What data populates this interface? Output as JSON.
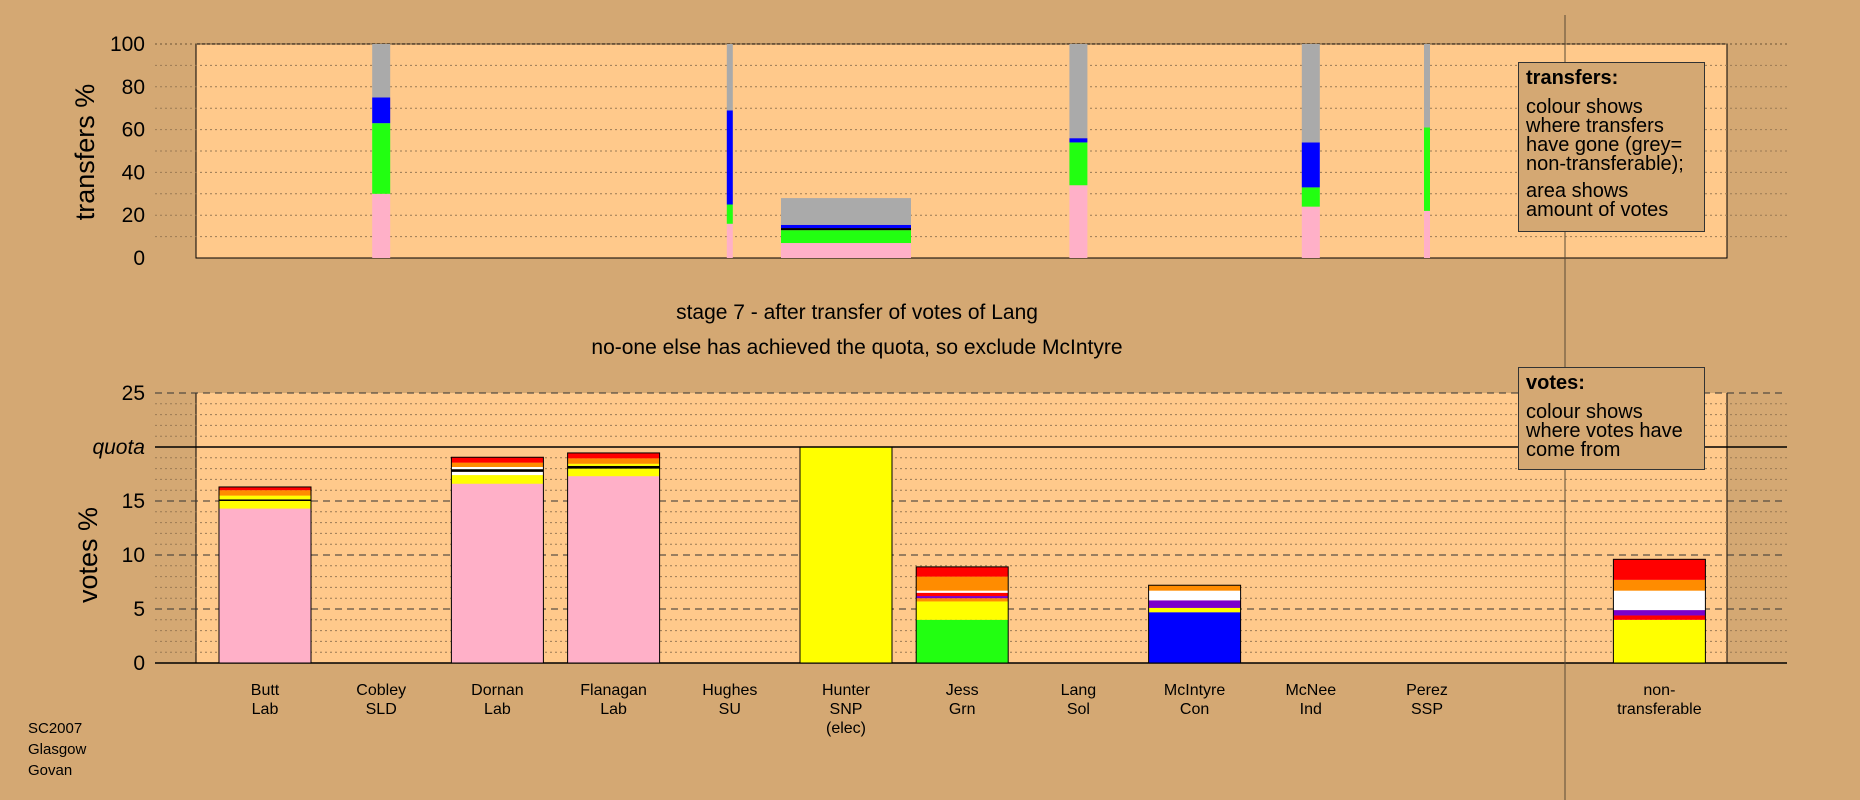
{
  "chart_data": {
    "type": "bar",
    "stage_title": "stage 7 - after transfer of votes of Lang",
    "stage_subtitle": "no-one else has achieved the quota, so exclude McIntyre",
    "colors": {
      "Lab": "#ffb0c8",
      "SNP": "#ffff00",
      "Grn": "#22ff11",
      "Con": "#0000ff",
      "SSP": "#ff0000",
      "Sol": "#ff8c00",
      "SLD": "#ff8c00",
      "SU": "#7b00cc",
      "Ind": "#ffffff",
      "nontransferable": "#aaaaaa",
      "black": "#000000"
    },
    "top_chart": {
      "ylabel": "transfers %",
      "yticks": [
        0,
        20,
        40,
        60,
        80,
        100
      ],
      "ylim": [
        0,
        100
      ],
      "bars": [
        {
          "col": 1,
          "width": "narrow",
          "segments": [
            [
              "Lab",
              30
            ],
            [
              "Grn",
              33
            ],
            [
              "Con",
              12
            ],
            [
              "nontransferable",
              25
            ]
          ]
        },
        {
          "col": 4,
          "width": "thin",
          "segments": [
            [
              "Lab",
              16
            ],
            [
              "Grn",
              9
            ],
            [
              "Con",
              44
            ],
            [
              "nontransferable",
              31
            ]
          ]
        },
        {
          "col": 5,
          "width": "wide",
          "segments": [
            [
              "Lab",
              7
            ],
            [
              "Grn",
              6
            ],
            [
              "black",
              1
            ],
            [
              "Con",
              1.5
            ],
            [
              "nontransferable",
              12.5
            ]
          ]
        },
        {
          "col": 7,
          "width": "narrow",
          "segments": [
            [
              "Lab",
              34
            ],
            [
              "Grn",
              20
            ],
            [
              "Con",
              2
            ],
            [
              "nontransferable",
              44
            ]
          ]
        },
        {
          "col": 9,
          "width": "narrow",
          "segments": [
            [
              "Lab",
              24
            ],
            [
              "Grn",
              9
            ],
            [
              "Con",
              21
            ],
            [
              "nontransferable",
              46
            ]
          ]
        },
        {
          "col": 10,
          "width": "thin",
          "segments": [
            [
              "Lab",
              22
            ],
            [
              "Grn",
              39
            ],
            [
              "nontransferable",
              39
            ]
          ]
        }
      ]
    },
    "bottom_chart": {
      "ylabel": "votes %",
      "yticks": [
        0,
        5,
        10,
        15,
        20,
        25
      ],
      "ylim": [
        0,
        25
      ],
      "quota": 20,
      "quota_label": "quota",
      "candidates": [
        {
          "name": "Butt",
          "party": "Lab",
          "col": 0,
          "segments": [
            [
              "Lab",
              14.3
            ],
            [
              "SNP",
              0.7
            ],
            [
              "black",
              0.15
            ],
            [
              "SNP",
              0.35
            ],
            [
              "Sol",
              0.5
            ],
            [
              "SSP",
              0.3
            ]
          ]
        },
        {
          "name": "Cobley",
          "party": "SLD",
          "col": 1,
          "segments": []
        },
        {
          "name": "Dornan",
          "party": "Lab",
          "col": 2,
          "segments": [
            [
              "Lab",
              16.6
            ],
            [
              "SNP",
              0.8
            ],
            [
              "Ind",
              0.3
            ],
            [
              "black",
              0.25
            ],
            [
              "Ind",
              0.2
            ],
            [
              "Sol",
              0.4
            ],
            [
              "SSP",
              0.5
            ]
          ]
        },
        {
          "name": "Flanagan",
          "party": "Lab",
          "col": 3,
          "segments": [
            [
              "Lab",
              17.3
            ],
            [
              "SNP",
              0.7
            ],
            [
              "black",
              0.25
            ],
            [
              "SNP",
              0.2
            ],
            [
              "Sol",
              0.5
            ],
            [
              "SSP",
              0.5
            ]
          ]
        },
        {
          "name": "Hughes",
          "party": "SU",
          "col": 4,
          "segments": []
        },
        {
          "name": "Hunter",
          "party": "SNP",
          "note": "(elec)",
          "col": 5,
          "segments": [
            [
              "SNP",
              20
            ]
          ]
        },
        {
          "name": "Jess",
          "party": "Grn",
          "col": 6,
          "segments": [
            [
              "Grn",
              4
            ],
            [
              "SNP",
              1.7
            ],
            [
              "Sol",
              0.3
            ],
            [
              "SU",
              0.2
            ],
            [
              "SSP",
              0.3
            ],
            [
              "Ind",
              0.2
            ],
            [
              "Sol",
              1.3
            ],
            [
              "SSP",
              0.9
            ]
          ]
        },
        {
          "name": "Lang",
          "party": "Sol",
          "col": 7,
          "segments": []
        },
        {
          "name": "McIntyre",
          "party": "Con",
          "col": 8,
          "segments": [
            [
              "Con",
              4.7
            ],
            [
              "SNP",
              0.4
            ],
            [
              "SU",
              0.7
            ],
            [
              "Ind",
              0.9
            ],
            [
              "Sol",
              0.5
            ]
          ]
        },
        {
          "name": "McNee",
          "party": "Ind",
          "col": 9,
          "segments": []
        },
        {
          "name": "Perez",
          "party": "SSP",
          "col": 10,
          "segments": []
        },
        {
          "name": "non-",
          "party": "transferable",
          "col": 12,
          "segments": [
            [
              "SNP",
              4
            ],
            [
              "SSP",
              0.4
            ],
            [
              "SU",
              0.5
            ],
            [
              "Ind",
              1.8
            ],
            [
              "Sol",
              1.0
            ],
            [
              "SSP",
              1.9
            ]
          ]
        }
      ]
    }
  },
  "legend_transfers": {
    "title": "transfers:",
    "line1": "colour shows where transfers have gone (grey= non-transferable);",
    "line2": "area shows amount of votes"
  },
  "legend_votes": {
    "title": "votes:",
    "line1": "colour shows where votes have come from"
  },
  "corner_label": {
    "line1": "SC2007",
    "line2": "Glasgow",
    "line3": "Govan"
  }
}
